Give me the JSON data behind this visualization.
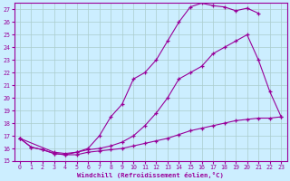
{
  "xlabel": "Windchill (Refroidissement éolien,°C)",
  "bg_color": "#cceeff",
  "line_color": "#990099",
  "grid_color": "#aacccc",
  "xlim": [
    -0.5,
    23.5
  ],
  "ylim": [
    15,
    27.5
  ],
  "xticks": [
    0,
    1,
    2,
    3,
    4,
    5,
    6,
    7,
    8,
    9,
    10,
    11,
    12,
    13,
    14,
    15,
    16,
    17,
    18,
    19,
    20,
    21,
    22,
    23
  ],
  "yticks": [
    15,
    16,
    17,
    18,
    19,
    20,
    21,
    22,
    23,
    24,
    25,
    26,
    27
  ],
  "line1_x": [
    0,
    1,
    2,
    3,
    4,
    5,
    6,
    7,
    8,
    9,
    10,
    11,
    12,
    13,
    14,
    15,
    16,
    17,
    18,
    19,
    20,
    21,
    22,
    23
  ],
  "line1_y": [
    16.8,
    16.1,
    15.9,
    15.6,
    15.5,
    15.5,
    15.7,
    15.8,
    15.9,
    16.0,
    16.2,
    16.4,
    16.6,
    16.8,
    17.1,
    17.4,
    17.6,
    17.8,
    18.0,
    18.2,
    18.3,
    18.4,
    18.4,
    18.5
  ],
  "line2_x": [
    0,
    1,
    2,
    3,
    4,
    5,
    6,
    7,
    8,
    9,
    10,
    11,
    12,
    13,
    14,
    15,
    16,
    17,
    18,
    19,
    20,
    21
  ],
  "line2_y": [
    16.8,
    16.1,
    15.9,
    15.6,
    15.5,
    15.7,
    16.0,
    17.0,
    18.5,
    19.5,
    21.5,
    22.0,
    23.0,
    24.5,
    26.0,
    27.2,
    27.5,
    27.3,
    27.2,
    26.9,
    27.1,
    26.7
  ],
  "line3_x": [
    0,
    3,
    4,
    5,
    6,
    7,
    8,
    9,
    10,
    11,
    12,
    13,
    14,
    15,
    16,
    17,
    18,
    19,
    20,
    21,
    22,
    23
  ],
  "line3_y": [
    16.8,
    15.7,
    15.6,
    15.7,
    15.9,
    16.0,
    16.2,
    16.5,
    17.0,
    17.8,
    18.8,
    20.0,
    21.5,
    22.0,
    22.5,
    23.5,
    24.0,
    24.5,
    25.0,
    23.0,
    20.5,
    18.5
  ]
}
